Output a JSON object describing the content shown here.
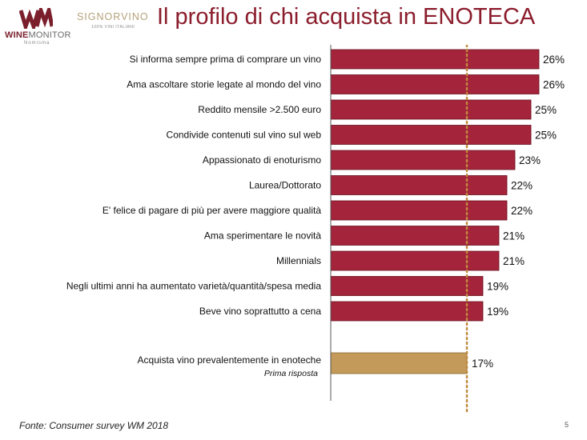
{
  "header": {
    "title": "Il profilo di chi acquista in ENOTECA",
    "logo_wm": {
      "word_bold": "WINE",
      "word_thin": "MONITOR",
      "sub": "Nomisma"
    },
    "logo_sv": {
      "name": "SIGNORVINO",
      "tag": "100% VINI ITALIANI"
    }
  },
  "footer": {
    "source": "Fonte: Consumer survey WM 2018",
    "page": "5"
  },
  "colors": {
    "title": "#8b1d2c",
    "bar": "#a4243b",
    "highlight": "#c49a5a",
    "reference_line": "#c08a3e"
  },
  "chart_data": {
    "type": "bar",
    "orientation": "horizontal",
    "unit": "%",
    "xlim": [
      0,
      28
    ],
    "categories": [
      "Si informa sempre prima di comprare un vino",
      "Ama ascoltare storie legate al mondo del vino",
      "Reddito mensile >2.500 euro",
      "Condivide contenuti sul vino sul web",
      "Appassionato di enoturismo",
      "Laurea/Dottorato",
      "E' felice di pagare di più per avere maggiore qualità",
      "Ama sperimentare le novità",
      "Millennials",
      "Negli ultimi anni ha aumentato varietà/quantità/spesa media",
      "Beve vino soprattutto a cena"
    ],
    "values": [
      26,
      26,
      25,
      25,
      23,
      22,
      22,
      21,
      21,
      19,
      19
    ],
    "value_labels": [
      "26%",
      "26%",
      "25%",
      "25%",
      "23%",
      "22%",
      "22%",
      "21%",
      "21%",
      "19%",
      "19%"
    ],
    "highlight": {
      "category": "Acquista vino prevalentemente in enoteche",
      "note": "Prima risposta",
      "value": 17,
      "value_label": "17%"
    },
    "reference_line": {
      "value": 17,
      "style": "dotted"
    },
    "grid": false,
    "legend": "none"
  }
}
